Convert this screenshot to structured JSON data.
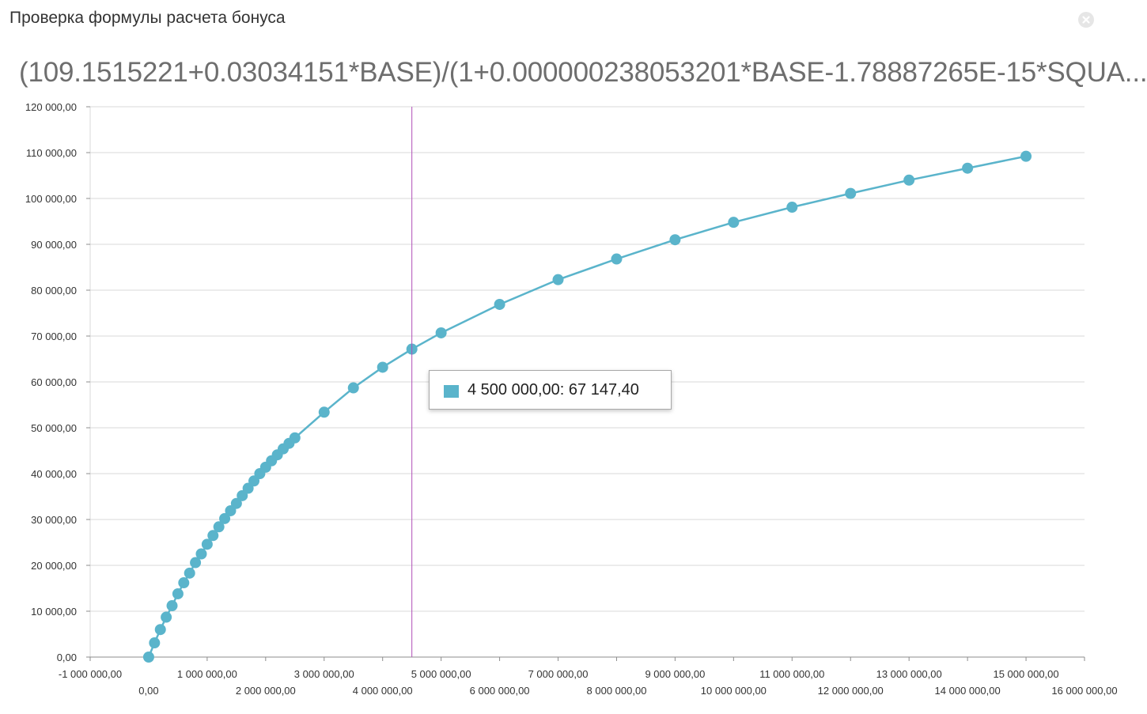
{
  "window": {
    "title": "Проверка формулы расчета бонуса",
    "close_icon": "close-icon"
  },
  "chart_header": {
    "formula": "(109.1515221+0.03034151*BASE)/(1+0.000000238053201*BASE-1.78887265E-15*SQUA..."
  },
  "tooltip": {
    "text": "4 500 000,00: 67 147,40"
  },
  "colors": {
    "series": "#5ab4cb",
    "crosshair": "#b04fb8",
    "grid": "#d9d9d9",
    "axis": "#8c8c8c"
  },
  "chart_data": {
    "type": "line",
    "markers": true,
    "xlim": [
      -1000000,
      16000000
    ],
    "ylim": [
      0,
      120000
    ],
    "grid": true,
    "crosshair_x": 4500000,
    "x_ticks_upper": [
      "-1 000 000,00",
      "1 000 000,00",
      "3 000 000,00",
      "5 000 000,00",
      "7 000 000,00",
      "9 000 000,00",
      "11 000 000,00",
      "13 000 000,00",
      "15 000 000,00"
    ],
    "x_ticks_lower": [
      "0,00",
      "2 000 000,00",
      "4 000 000,00",
      "6 000 000,00",
      "8 000 000,00",
      "10 000 000,00",
      "12 000 000,00",
      "14 000 000,00",
      "16 000 000,00"
    ],
    "y_ticks": [
      "0,00",
      "10 000,00",
      "20 000,00",
      "30 000,00",
      "40 000,00",
      "50 000,00",
      "60 000,00",
      "70 000,00",
      "80 000,00",
      "90 000,00",
      "100 000,00",
      "110 000,00",
      "120 000,00"
    ],
    "series": [
      {
        "x": [
          0,
          100000,
          200000,
          300000,
          400000,
          500000,
          600000,
          700000,
          800000,
          900000,
          1000000,
          1100000,
          1200000,
          1300000,
          1400000,
          1500000,
          1600000,
          1700000,
          1800000,
          1900000,
          2000000,
          2100000,
          2200000,
          2300000,
          2400000,
          2500000,
          3000000,
          3500000,
          4000000,
          4500000,
          5000000,
          6000000,
          7000000,
          8000000,
          9000000,
          10000000,
          11000000,
          12000000,
          13000000,
          14000000,
          15000000
        ],
        "y": [
          0,
          3100,
          6000,
          8700,
          11200,
          13800,
          16200,
          18300,
          20600,
          22500,
          24600,
          26500,
          28400,
          30200,
          31900,
          33500,
          35200,
          36800,
          38400,
          40000,
          41400,
          42800,
          44100,
          45400,
          46600,
          47800,
          53400,
          58700,
          63200,
          67147.4,
          70700,
          76900,
          82300,
          86800,
          91000,
          94800,
          98100,
          101100,
          104000,
          106600,
          109200
        ]
      }
    ]
  }
}
